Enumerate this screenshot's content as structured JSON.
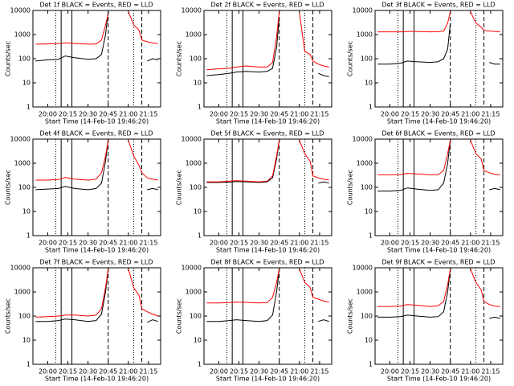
{
  "chart_data": [
    {
      "type": "line",
      "title": "Det 1f BLACK = Events, RED = LLD",
      "x_label": "Start Time (14-Feb-10 19:46:20)",
      "y_label": "Counts/sec",
      "log_y": true,
      "x": [
        "19:51",
        "20:00",
        "20:08",
        "20:13",
        "20:20",
        "20:30",
        "20:36",
        "20:40",
        "20:43",
        "20:45",
        "20:50",
        "20:55",
        "21:00",
        "21:04",
        "21:08",
        "21:10",
        "21:14",
        "21:18",
        "21:22"
      ],
      "xlim": [
        "19:49",
        "21:24"
      ],
      "xticks": [
        "20:00",
        "20:15",
        "20:30",
        "20:45",
        "21:00",
        "21:15"
      ],
      "ylim": [
        1,
        10000
      ],
      "yticks": [
        1,
        10,
        100,
        1000,
        10000
      ],
      "vlines": [
        {
          "x": "20:06",
          "style": "dotted"
        },
        {
          "x": "20:10",
          "style": "solid"
        },
        {
          "x": "20:18",
          "style": "solid"
        },
        {
          "x": "20:45",
          "style": "dashed"
        },
        {
          "x": "21:04",
          "style": "dotted"
        },
        {
          "x": "21:10",
          "style": "dashed"
        }
      ],
      "series": [
        {
          "color": "#000000",
          "values": [
            80,
            90,
            95,
            130,
            110,
            95,
            100,
            150,
            1000,
            9000,
            null,
            null,
            null,
            null,
            null,
            null,
            80,
            100,
            90
          ]
        },
        {
          "color": "#ff0000",
          "values": [
            400,
            410,
            420,
            450,
            430,
            400,
            410,
            600,
            2500,
            7000,
            null,
            null,
            9000,
            2500,
            1500,
            600,
            500,
            450,
            420
          ]
        }
      ]
    },
    {
      "type": "line",
      "title": "Det 2f BLACK = Events, RED = LLD",
      "x_label": "Start Time (14-Feb-10 19:46:20)",
      "y_label": "Counts/sec",
      "log_y": true,
      "x": [
        "19:51",
        "20:00",
        "20:08",
        "20:13",
        "20:20",
        "20:30",
        "20:36",
        "20:40",
        "20:43",
        "20:45",
        "20:50",
        "20:55",
        "21:00",
        "21:04",
        "21:08",
        "21:10",
        "21:14",
        "21:18",
        "21:22"
      ],
      "xlim": [
        "19:49",
        "21:24"
      ],
      "xticks": [
        "20:00",
        "20:15",
        "20:30",
        "20:45",
        "21:00",
        "21:15"
      ],
      "ylim": [
        1,
        10000
      ],
      "yticks": [
        1,
        10,
        100,
        1000,
        10000
      ],
      "vlines": [
        {
          "x": "20:06",
          "style": "dotted"
        },
        {
          "x": "20:10",
          "style": "solid"
        },
        {
          "x": "20:18",
          "style": "solid"
        },
        {
          "x": "20:45",
          "style": "dashed"
        },
        {
          "x": "21:04",
          "style": "dotted"
        },
        {
          "x": "21:10",
          "style": "dashed"
        }
      ],
      "series": [
        {
          "color": "#000000",
          "values": [
            20,
            22,
            25,
            28,
            30,
            28,
            30,
            40,
            300,
            5000,
            null,
            null,
            null,
            null,
            null,
            null,
            25,
            20,
            18
          ]
        },
        {
          "color": "#ff0000",
          "values": [
            35,
            38,
            40,
            45,
            50,
            45,
            45,
            70,
            800,
            9000,
            null,
            null,
            8000,
            200,
            150,
            80,
            60,
            50,
            45
          ]
        }
      ]
    },
    {
      "type": "line",
      "title": "Det 3f BLACK = Events, RED = LLD",
      "x_label": "Start Time (14-Feb-10 19:46:20)",
      "y_label": "Counts/sec",
      "log_y": true,
      "x": [
        "19:51",
        "20:00",
        "20:08",
        "20:13",
        "20:20",
        "20:30",
        "20:36",
        "20:40",
        "20:43",
        "20:45",
        "20:50",
        "20:55",
        "21:00",
        "21:04",
        "21:08",
        "21:10",
        "21:14",
        "21:18",
        "21:22"
      ],
      "xlim": [
        "19:49",
        "21:24"
      ],
      "xticks": [
        "20:00",
        "20:15",
        "20:30",
        "20:45",
        "21:00",
        "21:15"
      ],
      "ylim": [
        1,
        10000
      ],
      "yticks": [
        1,
        10,
        100,
        1000,
        10000
      ],
      "vlines": [
        {
          "x": "20:06",
          "style": "dotted"
        },
        {
          "x": "20:10",
          "style": "solid"
        },
        {
          "x": "20:18",
          "style": "solid"
        },
        {
          "x": "20:45",
          "style": "dashed"
        },
        {
          "x": "21:04",
          "style": "dotted"
        },
        {
          "x": "21:10",
          "style": "dashed"
        }
      ],
      "series": [
        {
          "color": "#000000",
          "values": [
            60,
            60,
            65,
            80,
            75,
            70,
            75,
            100,
            250,
            3000,
            null,
            null,
            null,
            null,
            null,
            null,
            70,
            60,
            60
          ]
        },
        {
          "color": "#ff0000",
          "values": [
            1300,
            1300,
            1300,
            1350,
            1350,
            1300,
            1320,
            1400,
            3000,
            9000,
            null,
            null,
            9000,
            3000,
            2000,
            1500,
            1400,
            1350,
            1300
          ]
        }
      ]
    },
    {
      "type": "line",
      "title": "Det 4f BLACK = Events, RED = LLD",
      "x_label": "Start Time (14-Feb-10 19:46:20)",
      "y_label": "Counts/sec",
      "log_y": true,
      "x": [
        "19:51",
        "20:00",
        "20:08",
        "20:13",
        "20:20",
        "20:30",
        "20:36",
        "20:40",
        "20:43",
        "20:45",
        "20:50",
        "20:55",
        "21:00",
        "21:04",
        "21:08",
        "21:10",
        "21:14",
        "21:18",
        "21:22"
      ],
      "xlim": [
        "19:49",
        "21:24"
      ],
      "xticks": [
        "20:00",
        "20:15",
        "20:30",
        "20:45",
        "21:00",
        "21:15"
      ],
      "ylim": [
        1,
        10000
      ],
      "yticks": [
        1,
        10,
        100,
        1000,
        10000
      ],
      "vlines": [
        {
          "x": "20:06",
          "style": "dotted"
        },
        {
          "x": "20:10",
          "style": "solid"
        },
        {
          "x": "20:18",
          "style": "solid"
        },
        {
          "x": "20:45",
          "style": "dashed"
        },
        {
          "x": "21:04",
          "style": "dotted"
        },
        {
          "x": "21:10",
          "style": "dashed"
        }
      ],
      "series": [
        {
          "color": "#000000",
          "values": [
            80,
            85,
            90,
            110,
            90,
            80,
            90,
            150,
            1200,
            9000,
            null,
            null,
            null,
            null,
            null,
            null,
            80,
            90,
            80
          ]
        },
        {
          "color": "#ff0000",
          "values": [
            200,
            200,
            210,
            260,
            220,
            200,
            220,
            400,
            2000,
            9000,
            null,
            null,
            9000,
            2000,
            800,
            400,
            250,
            220,
            200
          ]
        }
      ]
    },
    {
      "type": "line",
      "title": "Det 5f BLACK = Events, RED = LLD",
      "x_label": "Start Time (14-Feb-10 19:46:20)",
      "y_label": "Counts/sec",
      "log_y": true,
      "x": [
        "19:51",
        "20:00",
        "20:08",
        "20:13",
        "20:20",
        "20:30",
        "20:36",
        "20:40",
        "20:43",
        "20:45",
        "20:50",
        "20:55",
        "21:00",
        "21:04",
        "21:08",
        "21:10",
        "21:14",
        "21:18",
        "21:22"
      ],
      "xlim": [
        "19:49",
        "21:24"
      ],
      "xticks": [
        "20:00",
        "20:15",
        "20:30",
        "20:45",
        "21:00",
        "21:15"
      ],
      "ylim": [
        1,
        10000
      ],
      "yticks": [
        1,
        10,
        100,
        1000,
        10000
      ],
      "vlines": [
        {
          "x": "20:06",
          "style": "dotted"
        },
        {
          "x": "20:10",
          "style": "solid"
        },
        {
          "x": "20:18",
          "style": "solid"
        },
        {
          "x": "20:45",
          "style": "dashed"
        },
        {
          "x": "21:04",
          "style": "dotted"
        },
        {
          "x": "21:10",
          "style": "dashed"
        }
      ],
      "series": [
        {
          "color": "#000000",
          "values": [
            160,
            160,
            165,
            175,
            170,
            160,
            170,
            250,
            1500,
            9000,
            null,
            null,
            null,
            null,
            null,
            null,
            150,
            170,
            150
          ]
        },
        {
          "color": "#ff0000",
          "values": [
            170,
            170,
            180,
            190,
            180,
            170,
            180,
            300,
            2000,
            9000,
            null,
            null,
            9000,
            2500,
            1200,
            300,
            250,
            220,
            200
          ]
        }
      ]
    },
    {
      "type": "line",
      "title": "Det 6f BLACK = Events, RED = LLD",
      "x_label": "Start Time (14-Feb-10 19:46:20)",
      "y_label": "Counts/sec",
      "log_y": true,
      "x": [
        "19:51",
        "20:00",
        "20:08",
        "20:13",
        "20:20",
        "20:30",
        "20:36",
        "20:40",
        "20:43",
        "20:45",
        "20:50",
        "20:55",
        "21:00",
        "21:04",
        "21:08",
        "21:10",
        "21:14",
        "21:18",
        "21:22"
      ],
      "xlim": [
        "19:49",
        "21:24"
      ],
      "xticks": [
        "20:00",
        "20:15",
        "20:30",
        "20:45",
        "21:00",
        "21:15"
      ],
      "ylim": [
        1,
        10000
      ],
      "yticks": [
        1,
        10,
        100,
        1000,
        10000
      ],
      "vlines": [
        {
          "x": "20:06",
          "style": "dotted"
        },
        {
          "x": "20:10",
          "style": "solid"
        },
        {
          "x": "20:18",
          "style": "solid"
        },
        {
          "x": "20:45",
          "style": "dashed"
        },
        {
          "x": "21:04",
          "style": "dotted"
        },
        {
          "x": "21:10",
          "style": "dashed"
        }
      ],
      "series": [
        {
          "color": "#000000",
          "values": [
            70,
            70,
            75,
            95,
            85,
            75,
            80,
            150,
            1000,
            9000,
            null,
            null,
            null,
            null,
            null,
            null,
            80,
            90,
            80
          ]
        },
        {
          "color": "#ff0000",
          "values": [
            330,
            330,
            340,
            380,
            360,
            330,
            340,
            500,
            2500,
            9000,
            null,
            null,
            9000,
            2500,
            1500,
            500,
            400,
            350,
            330
          ]
        }
      ]
    },
    {
      "type": "line",
      "title": "Det 7f BLACK = Events, RED = LLD",
      "x_label": "Start Time (14-Feb-10 19:46:20)",
      "y_label": "Counts/sec",
      "log_y": true,
      "x": [
        "19:51",
        "20:00",
        "20:08",
        "20:13",
        "20:20",
        "20:30",
        "20:36",
        "20:40",
        "20:43",
        "20:45",
        "20:50",
        "20:55",
        "21:00",
        "21:04",
        "21:08",
        "21:10",
        "21:14",
        "21:18",
        "21:22"
      ],
      "xlim": [
        "19:49",
        "21:24"
      ],
      "xticks": [
        "20:00",
        "20:15",
        "20:30",
        "20:45",
        "21:00",
        "21:15"
      ],
      "ylim": [
        1,
        10000
      ],
      "yticks": [
        1,
        10,
        100,
        1000,
        10000
      ],
      "vlines": [
        {
          "x": "20:06",
          "style": "dotted"
        },
        {
          "x": "20:10",
          "style": "solid"
        },
        {
          "x": "20:18",
          "style": "solid"
        },
        {
          "x": "20:45",
          "style": "dashed"
        },
        {
          "x": "21:04",
          "style": "dotted"
        },
        {
          "x": "21:10",
          "style": "dashed"
        }
      ],
      "series": [
        {
          "color": "#000000",
          "values": [
            60,
            60,
            65,
            75,
            70,
            60,
            65,
            120,
            1000,
            9000,
            null,
            null,
            null,
            null,
            null,
            null,
            55,
            70,
            60
          ]
        },
        {
          "color": "#ff0000",
          "values": [
            90,
            95,
            100,
            110,
            110,
            100,
            110,
            200,
            1500,
            9000,
            null,
            null,
            9000,
            1500,
            700,
            200,
            150,
            120,
            100
          ]
        }
      ]
    },
    {
      "type": "line",
      "title": "Det 8f BLACK = Events, RED = LLD",
      "x_label": "Start Time (14-Feb-10 19:46:20)",
      "y_label": "Counts/sec",
      "log_y": true,
      "x": [
        "19:51",
        "20:00",
        "20:08",
        "20:13",
        "20:20",
        "20:30",
        "20:36",
        "20:40",
        "20:43",
        "20:45",
        "20:50",
        "20:55",
        "21:00",
        "21:04",
        "21:08",
        "21:10",
        "21:14",
        "21:18",
        "21:22"
      ],
      "xlim": [
        "19:49",
        "21:24"
      ],
      "xticks": [
        "20:00",
        "20:15",
        "20:30",
        "20:45",
        "21:00",
        "21:15"
      ],
      "ylim": [
        1,
        10000
      ],
      "yticks": [
        1,
        10,
        100,
        1000,
        10000
      ],
      "vlines": [
        {
          "x": "20:06",
          "style": "dotted"
        },
        {
          "x": "20:10",
          "style": "solid"
        },
        {
          "x": "20:18",
          "style": "solid"
        },
        {
          "x": "20:45",
          "style": "dashed"
        },
        {
          "x": "21:04",
          "style": "dotted"
        },
        {
          "x": "21:10",
          "style": "dashed"
        }
      ],
      "series": [
        {
          "color": "#000000",
          "values": [
            60,
            60,
            65,
            70,
            65,
            60,
            65,
            110,
            1000,
            9000,
            null,
            null,
            null,
            null,
            null,
            null,
            60,
            70,
            60
          ]
        },
        {
          "color": "#ff0000",
          "values": [
            350,
            350,
            360,
            380,
            370,
            350,
            360,
            600,
            2500,
            9000,
            null,
            null,
            9000,
            2500,
            1500,
            600,
            500,
            420,
            380
          ]
        }
      ]
    },
    {
      "type": "line",
      "title": "Det 9f BLACK = Events, RED = LLD",
      "x_label": "Start Time (14-Feb-10 19:46:20)",
      "y_label": "Counts/sec",
      "log_y": true,
      "x": [
        "19:51",
        "20:00",
        "20:08",
        "20:13",
        "20:20",
        "20:30",
        "20:36",
        "20:40",
        "20:43",
        "20:45",
        "20:50",
        "20:55",
        "21:00",
        "21:04",
        "21:08",
        "21:10",
        "21:14",
        "21:18",
        "21:22"
      ],
      "xlim": [
        "19:49",
        "21:24"
      ],
      "xticks": [
        "20:00",
        "20:15",
        "20:30",
        "20:45",
        "21:00",
        "21:15"
      ],
      "ylim": [
        1,
        10000
      ],
      "yticks": [
        1,
        10,
        100,
        1000,
        10000
      ],
      "vlines": [
        {
          "x": "20:06",
          "style": "dotted"
        },
        {
          "x": "20:10",
          "style": "solid"
        },
        {
          "x": "20:18",
          "style": "solid"
        },
        {
          "x": "20:45",
          "style": "dashed"
        },
        {
          "x": "21:04",
          "style": "dotted"
        },
        {
          "x": "21:10",
          "style": "dashed"
        }
      ],
      "series": [
        {
          "color": "#000000",
          "values": [
            90,
            90,
            95,
            110,
            100,
            90,
            95,
            150,
            1000,
            9000,
            null,
            null,
            null,
            null,
            null,
            null,
            80,
            90,
            80
          ]
        },
        {
          "color": "#ff0000",
          "values": [
            250,
            250,
            260,
            300,
            280,
            250,
            270,
            400,
            2000,
            9000,
            null,
            null,
            9000,
            2500,
            1200,
            400,
            300,
            260,
            250
          ]
        }
      ]
    }
  ]
}
